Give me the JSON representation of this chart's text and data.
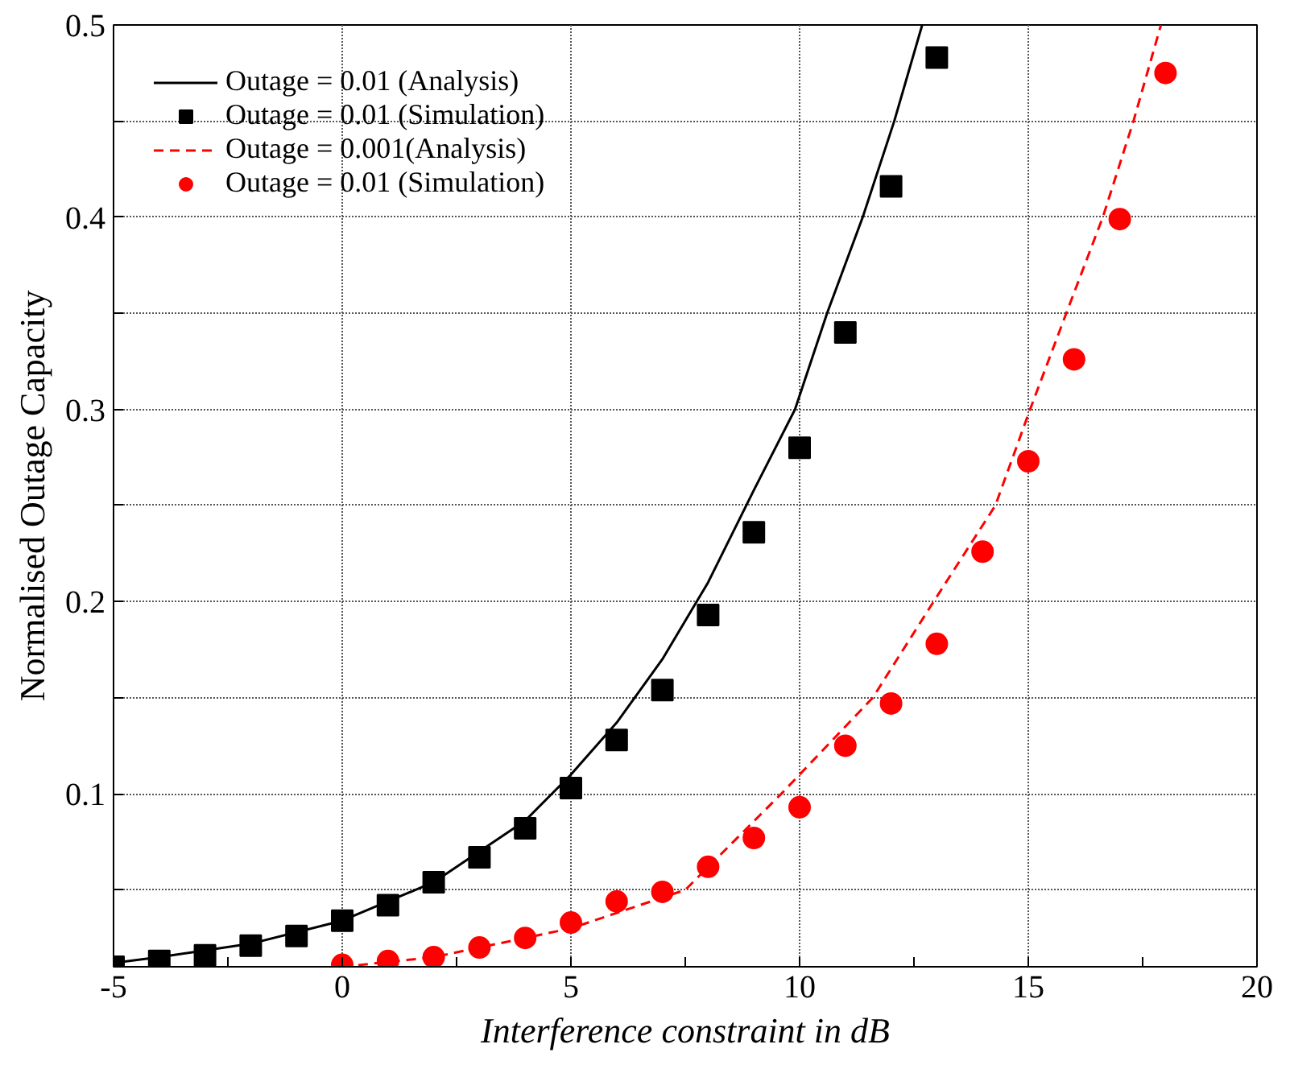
{
  "chart_data": {
    "type": "line",
    "xlabel": "Interference constraint in dB",
    "ylabel": "Normalised Outage Capacity",
    "xlim": [
      -5,
      20
    ],
    "ylim": [
      0.01,
      0.5
    ],
    "xticks": [
      -5,
      {
        "value": -2.5,
        "label": null
      },
      0,
      {
        "value": 2.5,
        "label": null
      },
      5,
      {
        "value": 7.5,
        "label": null
      },
      10,
      {
        "value": 12.5,
        "label": null
      },
      15,
      {
        "value": 17.5,
        "label": null
      },
      20
    ],
    "yticks": [
      {
        "value": 0.05,
        "label": null
      },
      0.1,
      {
        "value": 0.15,
        "label": null
      },
      0.2,
      {
        "value": 0.25,
        "label": null
      },
      0.3,
      {
        "value": 0.35,
        "label": null
      },
      0.4,
      {
        "value": 0.45,
        "label": null
      },
      0.5
    ],
    "grid": true,
    "legend": "top left",
    "series": [
      {
        "name": "Outage = 0.01 (Analysis)",
        "color": "#000000",
        "line_style": "solid",
        "marker": "none",
        "x": [
          -5,
          -4,
          -2,
          0,
          2,
          4,
          5,
          6,
          7,
          8,
          9,
          9.9,
          10.6,
          11.38,
          12.07,
          12.68
        ],
        "values": [
          0.012,
          0.015,
          0.022,
          0.034,
          0.054,
          0.086,
          0.11,
          0.137,
          0.17,
          0.21,
          0.258,
          0.3,
          0.35,
          0.4,
          0.45,
          0.5
        ]
      },
      {
        "name": "Outage = 0.01 (Simulation)",
        "type": "scatter",
        "color": "#000000",
        "marker": "square",
        "x": [
          -5,
          -4,
          -3,
          -2,
          -1,
          0,
          1,
          2,
          3,
          4,
          5,
          6,
          7,
          8,
          9,
          10,
          11,
          12,
          13
        ],
        "values": [
          0.01,
          0.013,
          0.016,
          0.021,
          0.026,
          0.034,
          0.042,
          0.054,
          0.067,
          0.082,
          0.103,
          0.128,
          0.154,
          0.193,
          0.236,
          0.28,
          0.34,
          0.416,
          0.483
        ]
      },
      {
        "name": "Outage = 0.001(Analysis)",
        "color": "#ff0000",
        "line_style": "dashed",
        "marker": "none",
        "x": [
          0,
          2,
          5,
          7.5,
          9.6,
          11.6,
          12.93,
          14.28,
          15.04,
          15.83,
          16.63,
          17.3,
          17.9
        ],
        "values": [
          0.01,
          0.015,
          0.03,
          0.05,
          0.1,
          0.15,
          0.2,
          0.25,
          0.3,
          0.35,
          0.4,
          0.45,
          0.5
        ]
      },
      {
        "name": "Outage = 0.01 (Simulation)",
        "type": "scatter",
        "color": "#ff0000",
        "marker": "circle",
        "x": [
          0,
          1,
          2,
          3,
          4,
          5,
          6,
          7,
          8,
          9,
          10,
          11,
          12,
          13,
          14,
          15,
          16,
          17,
          18
        ],
        "values": [
          0.011,
          0.013,
          0.015,
          0.02,
          0.025,
          0.033,
          0.044,
          0.049,
          0.062,
          0.077,
          0.093,
          0.125,
          0.147,
          0.178,
          0.226,
          0.273,
          0.326,
          0.399,
          0.475
        ]
      }
    ]
  }
}
